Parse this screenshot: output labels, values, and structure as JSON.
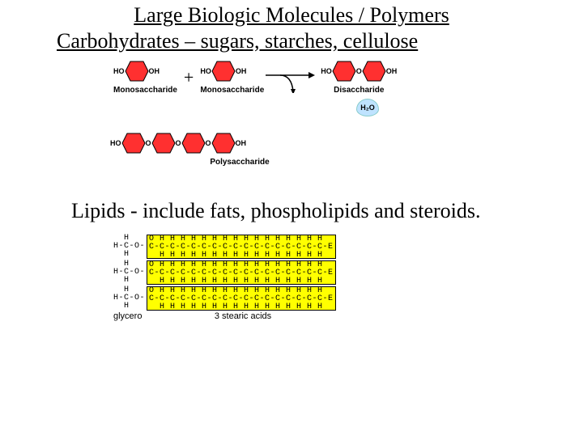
{
  "title": "Large Biologic Molecules / Polymers",
  "carb_heading": "Carbohydrates – sugars, starches, cellulose",
  "labels": {
    "HO": "HO",
    "OH": "OH",
    "O": "O",
    "mono": "Monosaccharide",
    "di": "Disaccharide",
    "poly": "Polysaccharide",
    "plus": "+",
    "h2o": "H₂O"
  },
  "hex": {
    "fill": "#ff3030",
    "stroke": "#000000",
    "size": 30,
    "arrow_color": "#000000"
  },
  "poly_units": 4,
  "lipid_heading": "Lipids - include fats, phospholipids and steroids.",
  "lipid": {
    "glycerol_top": "  H",
    "glycerol_mid": "H-C-O-",
    "glycerol_bot": "  H",
    "chain_top": "O H H H H H H H H H H H H H H H H",
    "chain_mid": "C-C-C-C-C-C-C-C-C-C-C-C-C-C-C-C-C-E",
    "chain_bot": "  H H H H H H H H H H H H H H H H",
    "cap_left": "glycero",
    "cap_right": "3 stearic acids",
    "rows": 3,
    "chain_bg": "#ffff00"
  }
}
